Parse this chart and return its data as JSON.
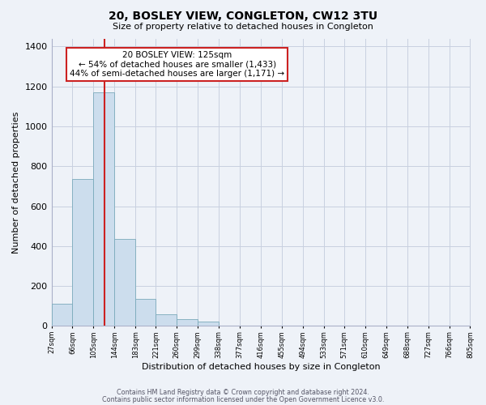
{
  "title": "20, BOSLEY VIEW, CONGLETON, CW12 3TU",
  "subtitle": "Size of property relative to detached houses in Congleton",
  "xlabel": "Distribution of detached houses by size in Congleton",
  "ylabel": "Number of detached properties",
  "bar_color": "#ccdded",
  "bar_edge_color": "#7aaabb",
  "background_color": "#eef2f8",
  "grid_color": "#c8d0e0",
  "vline_x": 125,
  "vline_color": "#cc2222",
  "annotation_title": "20 BOSLEY VIEW: 125sqm",
  "annotation_line1": "← 54% of detached houses are smaller (1,433)",
  "annotation_line2": "44% of semi-detached houses are larger (1,171) →",
  "footnote1": "Contains HM Land Registry data © Crown copyright and database right 2024.",
  "footnote2": "Contains public sector information licensed under the Open Government Licence v3.0.",
  "bin_edges": [
    27,
    66,
    105,
    144,
    183,
    221,
    260,
    299,
    338,
    377,
    416,
    455,
    494,
    533,
    571,
    610,
    649,
    688,
    727,
    766,
    805
  ],
  "bar_heights": [
    110,
    735,
    1170,
    435,
    135,
    58,
    35,
    20,
    0,
    0,
    0,
    0,
    0,
    0,
    0,
    0,
    0,
    0,
    0,
    0
  ],
  "ylim": [
    0,
    1440
  ],
  "yticks": [
    0,
    200,
    400,
    600,
    800,
    1000,
    1200,
    1400
  ]
}
